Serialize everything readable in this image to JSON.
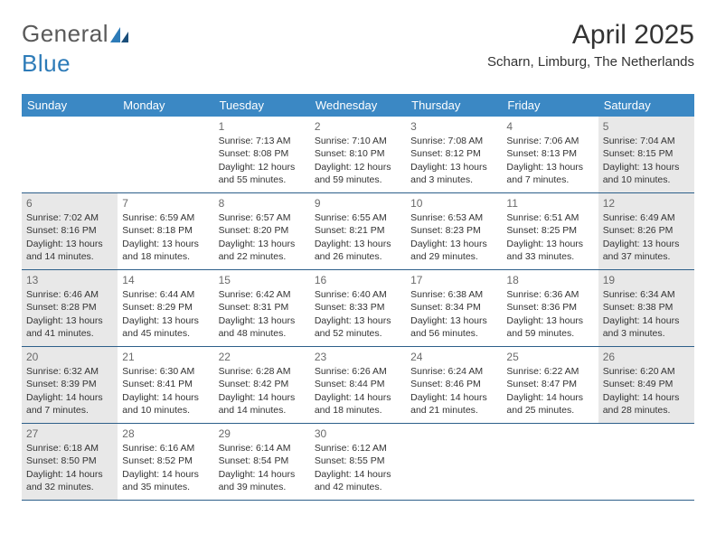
{
  "logo": {
    "general": "General",
    "blue": "Blue"
  },
  "title": "April 2025",
  "location": "Scharn, Limburg, The Netherlands",
  "colors": {
    "header_bg": "#3b88c4",
    "header_text": "#ffffff",
    "shaded_bg": "#e8e8e8",
    "border": "#2d5f8a",
    "logo_gray": "#5a5a5a",
    "logo_blue": "#2d7bb8",
    "text": "#333333",
    "daynum": "#6a6a6a"
  },
  "day_names": [
    "Sunday",
    "Monday",
    "Tuesday",
    "Wednesday",
    "Thursday",
    "Friday",
    "Saturday"
  ],
  "weeks": [
    [
      {
        "n": "",
        "shaded": false,
        "sunrise": "",
        "sunset": "",
        "dl1": "",
        "dl2": ""
      },
      {
        "n": "",
        "shaded": false,
        "sunrise": "",
        "sunset": "",
        "dl1": "",
        "dl2": ""
      },
      {
        "n": "1",
        "shaded": false,
        "sunrise": "Sunrise: 7:13 AM",
        "sunset": "Sunset: 8:08 PM",
        "dl1": "Daylight: 12 hours",
        "dl2": "and 55 minutes."
      },
      {
        "n": "2",
        "shaded": false,
        "sunrise": "Sunrise: 7:10 AM",
        "sunset": "Sunset: 8:10 PM",
        "dl1": "Daylight: 12 hours",
        "dl2": "and 59 minutes."
      },
      {
        "n": "3",
        "shaded": false,
        "sunrise": "Sunrise: 7:08 AM",
        "sunset": "Sunset: 8:12 PM",
        "dl1": "Daylight: 13 hours",
        "dl2": "and 3 minutes."
      },
      {
        "n": "4",
        "shaded": false,
        "sunrise": "Sunrise: 7:06 AM",
        "sunset": "Sunset: 8:13 PM",
        "dl1": "Daylight: 13 hours",
        "dl2": "and 7 minutes."
      },
      {
        "n": "5",
        "shaded": true,
        "sunrise": "Sunrise: 7:04 AM",
        "sunset": "Sunset: 8:15 PM",
        "dl1": "Daylight: 13 hours",
        "dl2": "and 10 minutes."
      }
    ],
    [
      {
        "n": "6",
        "shaded": true,
        "sunrise": "Sunrise: 7:02 AM",
        "sunset": "Sunset: 8:16 PM",
        "dl1": "Daylight: 13 hours",
        "dl2": "and 14 minutes."
      },
      {
        "n": "7",
        "shaded": false,
        "sunrise": "Sunrise: 6:59 AM",
        "sunset": "Sunset: 8:18 PM",
        "dl1": "Daylight: 13 hours",
        "dl2": "and 18 minutes."
      },
      {
        "n": "8",
        "shaded": false,
        "sunrise": "Sunrise: 6:57 AM",
        "sunset": "Sunset: 8:20 PM",
        "dl1": "Daylight: 13 hours",
        "dl2": "and 22 minutes."
      },
      {
        "n": "9",
        "shaded": false,
        "sunrise": "Sunrise: 6:55 AM",
        "sunset": "Sunset: 8:21 PM",
        "dl1": "Daylight: 13 hours",
        "dl2": "and 26 minutes."
      },
      {
        "n": "10",
        "shaded": false,
        "sunrise": "Sunrise: 6:53 AM",
        "sunset": "Sunset: 8:23 PM",
        "dl1": "Daylight: 13 hours",
        "dl2": "and 29 minutes."
      },
      {
        "n": "11",
        "shaded": false,
        "sunrise": "Sunrise: 6:51 AM",
        "sunset": "Sunset: 8:25 PM",
        "dl1": "Daylight: 13 hours",
        "dl2": "and 33 minutes."
      },
      {
        "n": "12",
        "shaded": true,
        "sunrise": "Sunrise: 6:49 AM",
        "sunset": "Sunset: 8:26 PM",
        "dl1": "Daylight: 13 hours",
        "dl2": "and 37 minutes."
      }
    ],
    [
      {
        "n": "13",
        "shaded": true,
        "sunrise": "Sunrise: 6:46 AM",
        "sunset": "Sunset: 8:28 PM",
        "dl1": "Daylight: 13 hours",
        "dl2": "and 41 minutes."
      },
      {
        "n": "14",
        "shaded": false,
        "sunrise": "Sunrise: 6:44 AM",
        "sunset": "Sunset: 8:29 PM",
        "dl1": "Daylight: 13 hours",
        "dl2": "and 45 minutes."
      },
      {
        "n": "15",
        "shaded": false,
        "sunrise": "Sunrise: 6:42 AM",
        "sunset": "Sunset: 8:31 PM",
        "dl1": "Daylight: 13 hours",
        "dl2": "and 48 minutes."
      },
      {
        "n": "16",
        "shaded": false,
        "sunrise": "Sunrise: 6:40 AM",
        "sunset": "Sunset: 8:33 PM",
        "dl1": "Daylight: 13 hours",
        "dl2": "and 52 minutes."
      },
      {
        "n": "17",
        "shaded": false,
        "sunrise": "Sunrise: 6:38 AM",
        "sunset": "Sunset: 8:34 PM",
        "dl1": "Daylight: 13 hours",
        "dl2": "and 56 minutes."
      },
      {
        "n": "18",
        "shaded": false,
        "sunrise": "Sunrise: 6:36 AM",
        "sunset": "Sunset: 8:36 PM",
        "dl1": "Daylight: 13 hours",
        "dl2": "and 59 minutes."
      },
      {
        "n": "19",
        "shaded": true,
        "sunrise": "Sunrise: 6:34 AM",
        "sunset": "Sunset: 8:38 PM",
        "dl1": "Daylight: 14 hours",
        "dl2": "and 3 minutes."
      }
    ],
    [
      {
        "n": "20",
        "shaded": true,
        "sunrise": "Sunrise: 6:32 AM",
        "sunset": "Sunset: 8:39 PM",
        "dl1": "Daylight: 14 hours",
        "dl2": "and 7 minutes."
      },
      {
        "n": "21",
        "shaded": false,
        "sunrise": "Sunrise: 6:30 AM",
        "sunset": "Sunset: 8:41 PM",
        "dl1": "Daylight: 14 hours",
        "dl2": "and 10 minutes."
      },
      {
        "n": "22",
        "shaded": false,
        "sunrise": "Sunrise: 6:28 AM",
        "sunset": "Sunset: 8:42 PM",
        "dl1": "Daylight: 14 hours",
        "dl2": "and 14 minutes."
      },
      {
        "n": "23",
        "shaded": false,
        "sunrise": "Sunrise: 6:26 AM",
        "sunset": "Sunset: 8:44 PM",
        "dl1": "Daylight: 14 hours",
        "dl2": "and 18 minutes."
      },
      {
        "n": "24",
        "shaded": false,
        "sunrise": "Sunrise: 6:24 AM",
        "sunset": "Sunset: 8:46 PM",
        "dl1": "Daylight: 14 hours",
        "dl2": "and 21 minutes."
      },
      {
        "n": "25",
        "shaded": false,
        "sunrise": "Sunrise: 6:22 AM",
        "sunset": "Sunset: 8:47 PM",
        "dl1": "Daylight: 14 hours",
        "dl2": "and 25 minutes."
      },
      {
        "n": "26",
        "shaded": true,
        "sunrise": "Sunrise: 6:20 AM",
        "sunset": "Sunset: 8:49 PM",
        "dl1": "Daylight: 14 hours",
        "dl2": "and 28 minutes."
      }
    ],
    [
      {
        "n": "27",
        "shaded": true,
        "sunrise": "Sunrise: 6:18 AM",
        "sunset": "Sunset: 8:50 PM",
        "dl1": "Daylight: 14 hours",
        "dl2": "and 32 minutes."
      },
      {
        "n": "28",
        "shaded": false,
        "sunrise": "Sunrise: 6:16 AM",
        "sunset": "Sunset: 8:52 PM",
        "dl1": "Daylight: 14 hours",
        "dl2": "and 35 minutes."
      },
      {
        "n": "29",
        "shaded": false,
        "sunrise": "Sunrise: 6:14 AM",
        "sunset": "Sunset: 8:54 PM",
        "dl1": "Daylight: 14 hours",
        "dl2": "and 39 minutes."
      },
      {
        "n": "30",
        "shaded": false,
        "sunrise": "Sunrise: 6:12 AM",
        "sunset": "Sunset: 8:55 PM",
        "dl1": "Daylight: 14 hours",
        "dl2": "and 42 minutes."
      },
      {
        "n": "",
        "shaded": false,
        "sunrise": "",
        "sunset": "",
        "dl1": "",
        "dl2": ""
      },
      {
        "n": "",
        "shaded": false,
        "sunrise": "",
        "sunset": "",
        "dl1": "",
        "dl2": ""
      },
      {
        "n": "",
        "shaded": false,
        "sunrise": "",
        "sunset": "",
        "dl1": "",
        "dl2": ""
      }
    ]
  ]
}
